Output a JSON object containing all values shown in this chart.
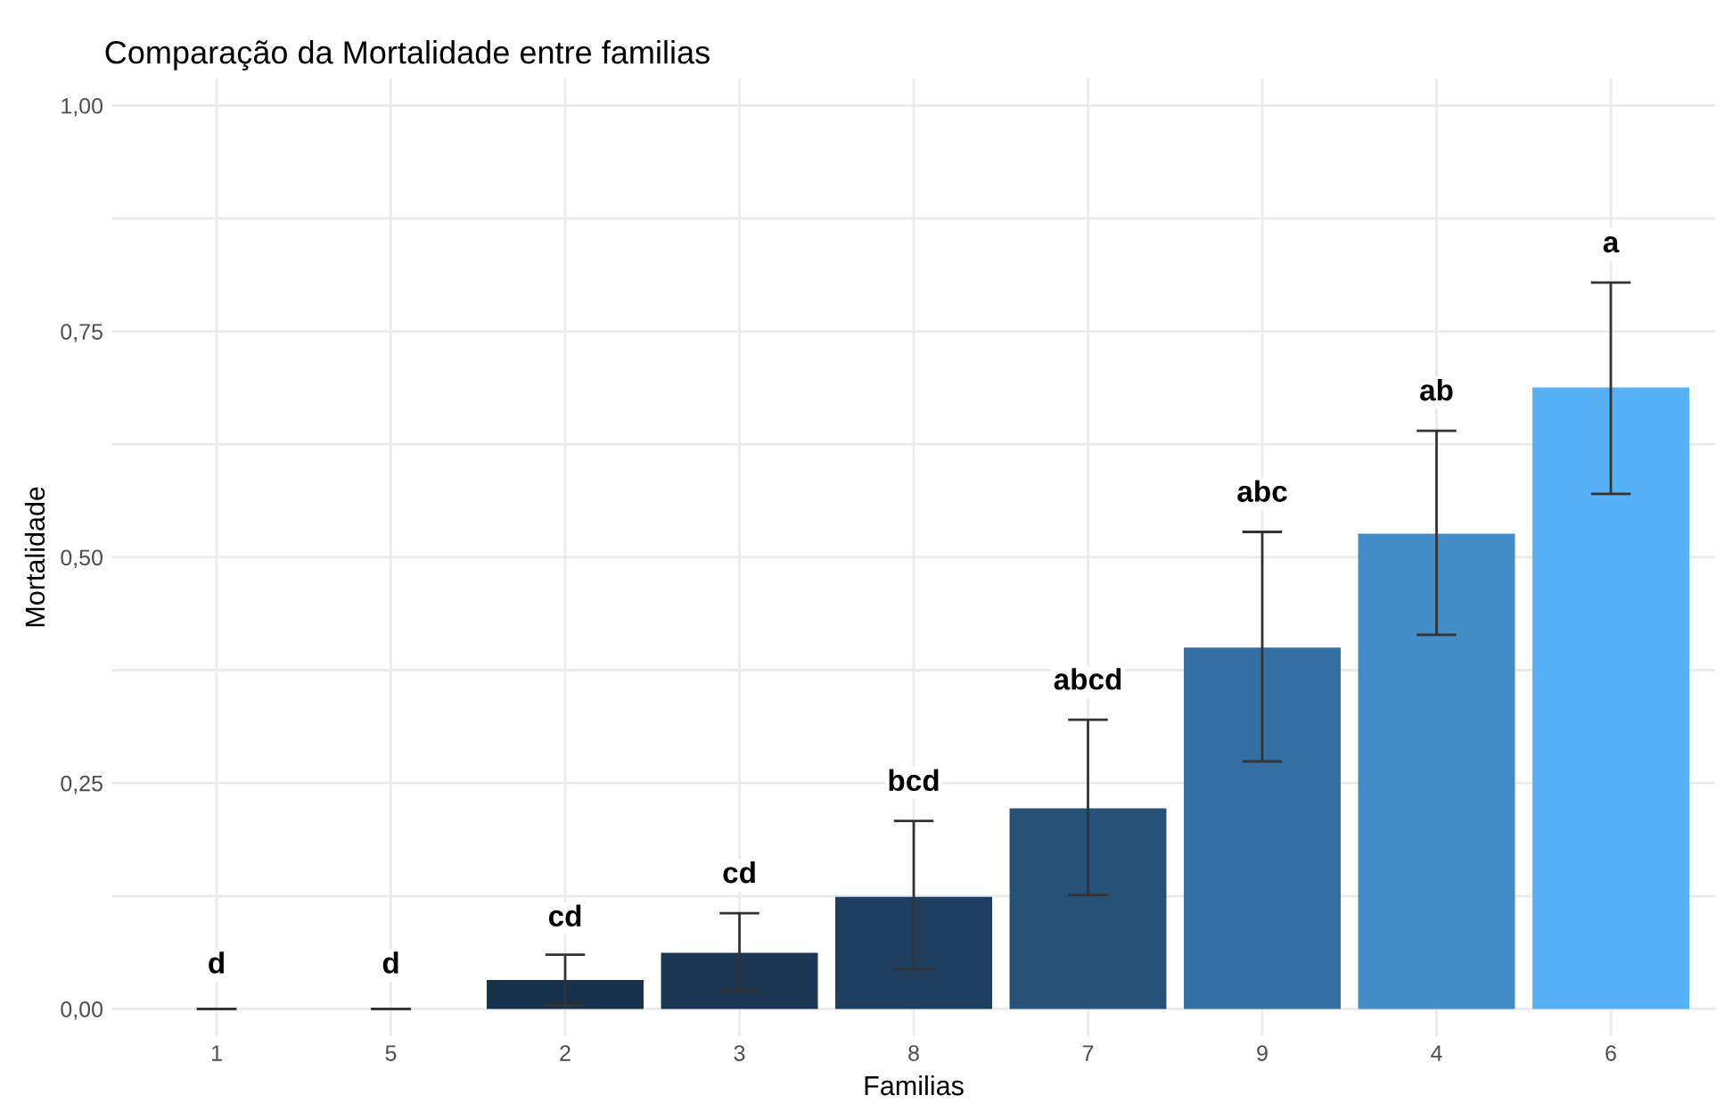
{
  "chart_data": {
    "type": "bar",
    "title": "Comparação da Mortalidade entre familias",
    "xlabel": "Familias",
    "ylabel": "Mortalidade",
    "categories": [
      "1",
      "5",
      "2",
      "3",
      "8",
      "7",
      "9",
      "4",
      "6"
    ],
    "values": [
      0,
      0,
      0.032,
      0.062,
      0.124,
      0.222,
      0.4,
      0.526,
      0.688
    ],
    "colors": [
      "#132b43",
      "#132b43",
      "#17314c",
      "#1b3754",
      "#1f3f60",
      "#26527a",
      "#336fa3",
      "#428dc7",
      "#56b1f7"
    ],
    "errors": [
      [
        0,
        0
      ],
      [
        0,
        0
      ],
      [
        0.004,
        0.06
      ],
      [
        0.02,
        0.106
      ],
      [
        0.044,
        0.208
      ],
      [
        0.126,
        0.32
      ],
      [
        0.274,
        0.528
      ],
      [
        0.414,
        0.64
      ],
      [
        0.57,
        0.804
      ]
    ],
    "ylim": [
      -0.03,
      1.03
    ],
    "yticks": [
      {
        "value": 0,
        "label": "0,00"
      },
      {
        "value": 0.125,
        "label": null
      },
      {
        "value": 0.25,
        "label": "0,25"
      },
      {
        "value": 0.375,
        "label": null
      },
      {
        "value": 0.5,
        "label": "0,50"
      },
      {
        "value": 0.625,
        "label": null
      },
      {
        "value": 0.75,
        "label": "0,75"
      },
      {
        "value": 0.875,
        "label": null
      },
      {
        "value": 1,
        "label": "1,00"
      }
    ],
    "grid": true,
    "annotations": [
      {
        "text": "d",
        "x": "1",
        "y": 0.048
      },
      {
        "text": "d",
        "x": "5",
        "y": 0.048
      },
      {
        "text": "cd",
        "x": "2",
        "y": 0.1
      },
      {
        "text": "cd",
        "x": "3",
        "y": 0.148
      },
      {
        "text": "bcd",
        "x": "8",
        "y": 0.25
      },
      {
        "text": "abcd",
        "x": "7",
        "y": 0.362
      },
      {
        "text": "abc",
        "x": "9",
        "y": 0.57
      },
      {
        "text": "ab",
        "x": "4",
        "y": 0.682
      },
      {
        "text": "a",
        "x": "6",
        "y": 0.846
      }
    ]
  }
}
